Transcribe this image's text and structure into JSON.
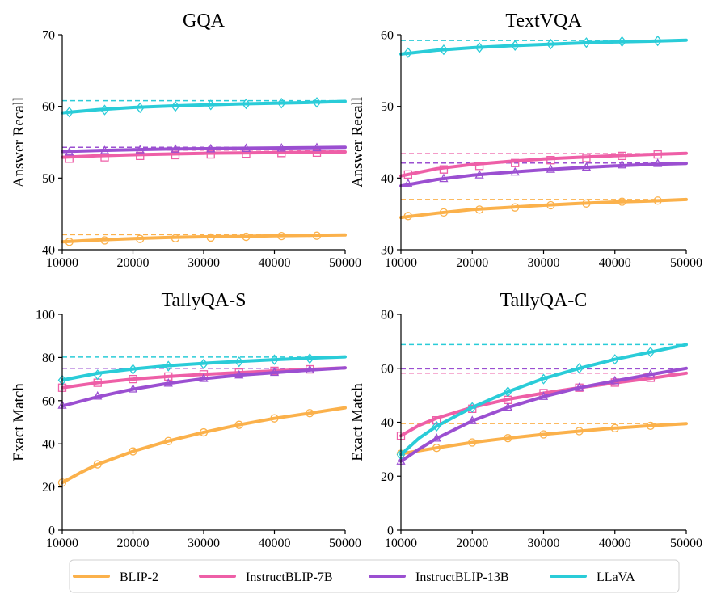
{
  "chart_data": [
    {
      "type": "line",
      "title": "GQA",
      "xlabel": "",
      "ylabel": "Answer Recall",
      "xlim": [
        10000,
        50000
      ],
      "ylim": [
        40,
        70
      ],
      "xticks": [
        10000,
        20000,
        30000,
        40000,
        50000
      ],
      "yticks": [
        40,
        50,
        60,
        70
      ],
      "marker_x": [
        11000,
        16000,
        21000,
        26000,
        31000,
        36000,
        41000,
        46000
      ],
      "series": [
        {
          "name": "BLIP-2",
          "color": "#FBB14B",
          "marker": "circle",
          "asymptote": 42.1,
          "x": [
            10000,
            15000,
            20000,
            25000,
            30000,
            35000,
            40000,
            45000,
            50000
          ],
          "y": [
            41.1,
            41.35,
            41.55,
            41.7,
            41.8,
            41.85,
            41.95,
            42.0,
            42.05
          ],
          "markers": [
            41.1,
            41.3,
            41.5,
            41.6,
            41.7,
            41.8,
            41.9,
            41.95
          ]
        },
        {
          "name": "InstructBLIP-7B",
          "color": "#EE5FA7",
          "marker": "square",
          "asymptote": 53.9,
          "x": [
            10000,
            15000,
            20000,
            25000,
            30000,
            35000,
            40000,
            45000,
            50000
          ],
          "y": [
            52.9,
            53.1,
            53.25,
            53.35,
            53.45,
            53.5,
            53.55,
            53.6,
            53.65
          ],
          "markers": [
            52.7,
            52.9,
            53.1,
            53.2,
            53.3,
            53.4,
            53.5,
            53.55
          ]
        },
        {
          "name": "InstructBLIP-13B",
          "color": "#9B4FD1",
          "marker": "triangle",
          "asymptote": 54.3,
          "x": [
            10000,
            15000,
            20000,
            25000,
            30000,
            35000,
            40000,
            45000,
            50000
          ],
          "y": [
            53.7,
            53.85,
            53.95,
            54.05,
            54.1,
            54.15,
            54.2,
            54.25,
            54.3
          ],
          "markers": [
            53.6,
            53.8,
            53.9,
            54.0,
            54.05,
            54.1,
            54.15,
            54.2
          ]
        },
        {
          "name": "LLaVA",
          "color": "#2ACCD8",
          "marker": "diamond",
          "asymptote": 60.8,
          "x": [
            10000,
            15000,
            20000,
            25000,
            30000,
            35000,
            40000,
            45000,
            50000
          ],
          "y": [
            59.1,
            59.55,
            59.85,
            60.05,
            60.2,
            60.35,
            60.45,
            60.55,
            60.7
          ],
          "markers": [
            59.2,
            59.5,
            59.8,
            60.0,
            60.2,
            60.35,
            60.45,
            60.55
          ]
        }
      ]
    },
    {
      "type": "line",
      "title": "TextVQA",
      "xlabel": "",
      "ylabel": "Answer Recall",
      "xlim": [
        10000,
        50000
      ],
      "ylim": [
        30,
        60
      ],
      "xticks": [
        10000,
        20000,
        30000,
        40000,
        50000
      ],
      "yticks": [
        30,
        40,
        50,
        60
      ],
      "marker_x": [
        11000,
        16000,
        21000,
        26000,
        31000,
        36000,
        41000,
        46000
      ],
      "series": [
        {
          "name": "BLIP-2",
          "color": "#FBB14B",
          "marker": "circle",
          "asymptote": 37.0,
          "x": [
            10000,
            15000,
            20000,
            25000,
            30000,
            35000,
            40000,
            45000,
            50000
          ],
          "y": [
            34.5,
            35.1,
            35.6,
            35.9,
            36.2,
            36.45,
            36.65,
            36.8,
            37.0
          ],
          "markers": [
            34.7,
            35.2,
            35.6,
            35.9,
            36.2,
            36.45,
            36.7,
            36.85
          ]
        },
        {
          "name": "InstructBLIP-7B",
          "color": "#EE5FA7",
          "marker": "square",
          "asymptote": 43.4,
          "x": [
            10000,
            15000,
            20000,
            25000,
            30000,
            35000,
            40000,
            45000,
            50000
          ],
          "y": [
            40.3,
            41.3,
            41.9,
            42.3,
            42.65,
            42.9,
            43.1,
            43.3,
            43.45
          ],
          "markers": [
            40.5,
            41.2,
            41.7,
            42.1,
            42.5,
            42.8,
            43.1,
            43.3
          ]
        },
        {
          "name": "InstructBLIP-13B",
          "color": "#9B4FD1",
          "marker": "triangle",
          "asymptote": 42.1,
          "x": [
            10000,
            15000,
            20000,
            25000,
            30000,
            35000,
            40000,
            45000,
            50000
          ],
          "y": [
            38.9,
            39.8,
            40.4,
            40.8,
            41.15,
            41.45,
            41.7,
            41.9,
            42.05
          ],
          "markers": [
            39.2,
            39.9,
            40.4,
            40.8,
            41.2,
            41.5,
            41.8,
            42.0
          ]
        },
        {
          "name": "LLaVA",
          "color": "#2ACCD8",
          "marker": "diamond",
          "asymptote": 59.2,
          "x": [
            10000,
            15000,
            20000,
            25000,
            30000,
            35000,
            40000,
            45000,
            50000
          ],
          "y": [
            57.3,
            57.85,
            58.2,
            58.45,
            58.65,
            58.85,
            59.0,
            59.1,
            59.25
          ],
          "markers": [
            57.5,
            57.9,
            58.2,
            58.5,
            58.7,
            58.9,
            59.05,
            59.15
          ]
        }
      ]
    },
    {
      "type": "line",
      "title": "TallyQA-S",
      "xlabel": "",
      "ylabel": "Exact Match",
      "xlim": [
        10000,
        50000
      ],
      "ylim": [
        0,
        100
      ],
      "xticks": [
        10000,
        20000,
        30000,
        40000,
        50000
      ],
      "yticks": [
        0,
        20,
        40,
        60,
        80,
        100
      ],
      "marker_x": [
        10000,
        15000,
        20000,
        25000,
        30000,
        35000,
        40000,
        45000
      ],
      "series": [
        {
          "name": "BLIP-2",
          "color": "#FBB14B",
          "marker": "circle",
          "asymptote": null,
          "x": [
            10000,
            12500,
            15000,
            20000,
            25000,
            30000,
            35000,
            40000,
            45000,
            50000
          ],
          "y": [
            22.0,
            26.5,
            30.5,
            36.5,
            41.3,
            45.3,
            48.8,
            51.8,
            54.2,
            56.7
          ],
          "markers": [
            22.0,
            30.5,
            36.5,
            41.3,
            45.3,
            48.8,
            51.8,
            54.2
          ]
        },
        {
          "name": "InstructBLIP-7B",
          "color": "#EE5FA7",
          "marker": "square",
          "asymptote": null,
          "x": [
            10000,
            15000,
            20000,
            25000,
            30000,
            35000,
            40000,
            45000,
            50000
          ],
          "y": [
            66.0,
            68.3,
            70.0,
            71.2,
            72.2,
            73.0,
            73.8,
            74.5,
            75.2
          ],
          "markers": [
            66.0,
            68.3,
            70.0,
            71.2,
            72.2,
            73.0,
            73.8,
            74.5
          ]
        },
        {
          "name": "InstructBLIP-13B",
          "color": "#9B4FD1",
          "marker": "triangle",
          "asymptote": 75.0,
          "x": [
            10000,
            15000,
            20000,
            25000,
            30000,
            35000,
            40000,
            45000,
            50000
          ],
          "y": [
            57.5,
            61.8,
            65.3,
            68.0,
            70.2,
            71.8,
            73.0,
            74.2,
            75.2
          ],
          "markers": [
            57.8,
            62.0,
            65.3,
            68.0,
            70.2,
            71.8,
            73.0,
            74.2
          ]
        },
        {
          "name": "LLaVA",
          "color": "#2ACCD8",
          "marker": "diamond",
          "asymptote": 80.2,
          "x": [
            10000,
            15000,
            20000,
            25000,
            30000,
            35000,
            40000,
            45000,
            50000
          ],
          "y": [
            69.5,
            72.7,
            74.7,
            76.2,
            77.3,
            78.2,
            79.0,
            79.7,
            80.3
          ],
          "markers": [
            69.5,
            72.0,
            74.5,
            76.0,
            77.0,
            78.0,
            79.0,
            79.5
          ]
        }
      ]
    },
    {
      "type": "line",
      "title": "TallyQA-C",
      "xlabel": "",
      "ylabel": "Exact Match",
      "xlim": [
        10000,
        50000
      ],
      "ylim": [
        0,
        80
      ],
      "xticks": [
        10000,
        20000,
        30000,
        40000,
        50000
      ],
      "yticks": [
        0,
        20,
        40,
        60,
        80
      ],
      "marker_x": [
        10000,
        15000,
        20000,
        25000,
        30000,
        35000,
        40000,
        45000
      ],
      "series": [
        {
          "name": "BLIP-2",
          "color": "#FBB14B",
          "marker": "circle",
          "asymptote": 39.5,
          "x": [
            10000,
            15000,
            20000,
            25000,
            30000,
            35000,
            40000,
            45000,
            50000
          ],
          "y": [
            28.3,
            30.5,
            32.5,
            34.1,
            35.5,
            36.7,
            37.8,
            38.7,
            39.5
          ],
          "markers": [
            28.3,
            30.5,
            32.5,
            34.1,
            35.5,
            36.7,
            37.8,
            38.7
          ]
        },
        {
          "name": "InstructBLIP-7B",
          "color": "#EE5FA7",
          "marker": "square",
          "asymptote": 58.2,
          "x": [
            10000,
            12500,
            15000,
            20000,
            25000,
            30000,
            35000,
            40000,
            45000,
            50000
          ],
          "y": [
            35.0,
            38.8,
            41.5,
            45.5,
            48.5,
            50.8,
            52.8,
            54.6,
            56.3,
            58.2
          ],
          "markers": [
            35.0,
            40.7,
            45.0,
            48.3,
            50.8,
            52.8,
            54.7,
            56.5
          ]
        },
        {
          "name": "InstructBLIP-13B",
          "color": "#9B4FD1",
          "marker": "triangle",
          "asymptote": 59.8,
          "x": [
            10000,
            12500,
            15000,
            20000,
            25000,
            30000,
            35000,
            40000,
            45000,
            50000
          ],
          "y": [
            25.5,
            30.0,
            34.0,
            40.5,
            45.5,
            49.5,
            52.8,
            55.3,
            57.7,
            60.0
          ],
          "markers": [
            25.5,
            34.0,
            40.5,
            45.5,
            49.5,
            52.8,
            55.3,
            57.7
          ]
        },
        {
          "name": "LLaVA",
          "color": "#2ACCD8",
          "marker": "diamond",
          "asymptote": 68.8,
          "x": [
            10000,
            12500,
            15000,
            20000,
            25000,
            30000,
            35000,
            40000,
            45000,
            50000
          ],
          "y": [
            28.0,
            34.0,
            38.5,
            45.5,
            51.3,
            56.2,
            60.0,
            63.3,
            66.0,
            68.8
          ],
          "markers": [
            28.0,
            38.5,
            45.5,
            51.3,
            56.0,
            60.0,
            63.3,
            66.0
          ]
        }
      ]
    }
  ],
  "legend": {
    "placement": "bottom",
    "items": [
      {
        "label": "BLIP-2",
        "color": "#FBB14B"
      },
      {
        "label": "InstructBLIP-7B",
        "color": "#EE5FA7"
      },
      {
        "label": "InstructBLIP-13B",
        "color": "#9B4FD1"
      },
      {
        "label": "LLaVA",
        "color": "#2ACCD8"
      }
    ]
  }
}
